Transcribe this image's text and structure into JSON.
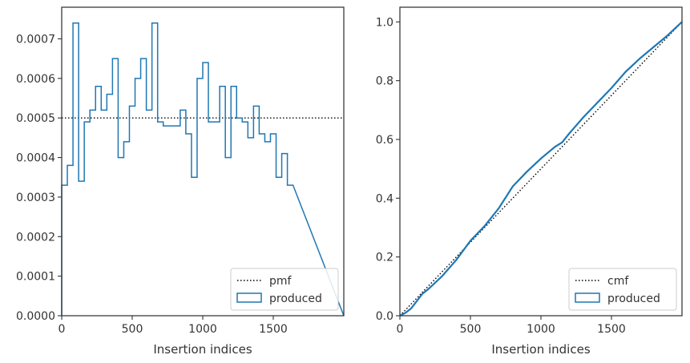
{
  "colors": {
    "series": "#1f77b4",
    "reference": "#000000",
    "frame": "#333333",
    "legend_border": "#cccccc"
  },
  "chart_data": [
    {
      "type": "histogram",
      "xlabel": "Insertion indices",
      "ylabel": "",
      "xlim": [
        0,
        2000
      ],
      "ylim": [
        0,
        0.00078
      ],
      "xticks": [
        0,
        500,
        1000,
        1500
      ],
      "xtick_labels": [
        "0",
        "500",
        "1000",
        "1500"
      ],
      "yticks": [
        0,
        0.0001,
        0.0002,
        0.0003,
        0.0004,
        0.0005,
        0.0006,
        0.0007
      ],
      "ytick_labels": [
        "0.0000",
        "0.0001",
        "0.0002",
        "0.0003",
        "0.0004",
        "0.0005",
        "0.0006",
        "0.0007"
      ],
      "legend_position": "lower-right",
      "series": [
        {
          "name": "pmf",
          "style": "dotted",
          "type": "line",
          "x": [
            0,
            2000
          ],
          "y": [
            0.0005,
            0.0005
          ]
        },
        {
          "name": "produced",
          "style": "step",
          "type": "histogram",
          "bin_width": 40,
          "x_start": 0,
          "values": [
            0.00033,
            0.00038,
            0.00074,
            0.00034,
            0.00049,
            0.00052,
            0.00058,
            0.00052,
            0.00056,
            0.00065,
            0.0004,
            0.00044,
            0.00053,
            0.0006,
            0.00065,
            0.00052,
            0.00074,
            0.00049,
            0.00048,
            0.00048,
            0.00048,
            0.00052,
            0.00046,
            0.00035,
            0.0006,
            0.00064,
            0.00049,
            0.00049,
            0.00058,
            0.0004,
            0.00058,
            0.0005,
            0.00049,
            0.00045,
            0.00053,
            0.00046,
            0.00044,
            0.00046,
            0.00035,
            0.00041,
            0.00033
          ]
        }
      ]
    },
    {
      "type": "line",
      "xlabel": "Insertion indices",
      "ylabel": "",
      "xlim": [
        0,
        2000
      ],
      "ylim": [
        0,
        1.05
      ],
      "xticks": [
        0,
        500,
        1000,
        1500
      ],
      "xtick_labels": [
        "0",
        "500",
        "1000",
        "1500"
      ],
      "yticks": [
        0,
        0.2,
        0.4,
        0.6,
        0.8,
        1.0
      ],
      "ytick_labels": [
        "0.0",
        "0.2",
        "0.4",
        "0.6",
        "0.8",
        "1.0"
      ],
      "legend_position": "lower-right",
      "series": [
        {
          "name": "cmf",
          "style": "dotted",
          "type": "line",
          "x": [
            0,
            2000
          ],
          "y": [
            0,
            1
          ]
        },
        {
          "name": "produced",
          "style": "solid",
          "type": "line",
          "x": [
            0,
            40,
            80,
            120,
            160,
            200,
            300,
            400,
            500,
            600,
            700,
            800,
            900,
            1000,
            1100,
            1150,
            1200,
            1300,
            1400,
            1500,
            1600,
            1700,
            1800,
            1900,
            2000
          ],
          "y": [
            0,
            0.01,
            0.025,
            0.05,
            0.075,
            0.09,
            0.135,
            0.19,
            0.255,
            0.305,
            0.365,
            0.44,
            0.49,
            0.535,
            0.575,
            0.59,
            0.62,
            0.675,
            0.725,
            0.775,
            0.83,
            0.875,
            0.915,
            0.955,
            1.0
          ]
        }
      ]
    }
  ]
}
